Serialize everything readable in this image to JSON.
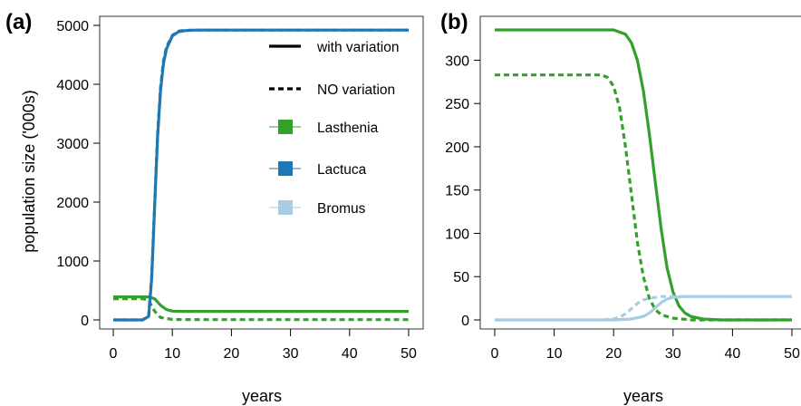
{
  "colors": {
    "Lasthenia": "#33a02c",
    "Lactuca": "#1f78b4",
    "Bromus": "#a6cee3"
  },
  "chart_data": [
    {
      "panel": "(a)",
      "type": "line",
      "title": "",
      "xlabel": "years",
      "ylabel": "population size ('000s)",
      "xlim": [
        0,
        50
      ],
      "ylim": [
        0,
        5000
      ],
      "x_ticks": [
        0,
        10,
        20,
        30,
        40,
        50
      ],
      "y_ticks": [
        0,
        1000,
        2000,
        3000,
        4000,
        5000
      ],
      "legend": {
        "placement": "right",
        "line_styles": [
          {
            "label": "with variation",
            "style": "solid"
          },
          {
            "label": "NO variation",
            "style": "dashed"
          }
        ],
        "species": [
          {
            "label": "Lasthenia",
            "color": "#33a02c"
          },
          {
            "label": "Lactuca",
            "color": "#1f78b4"
          },
          {
            "label": "Bromus",
            "color": "#a6cee3"
          }
        ]
      },
      "series": [
        {
          "name": "Lasthenia",
          "variation": "with",
          "style": "solid",
          "color": "#33a02c",
          "x": [
            0,
            5,
            6,
            7,
            8,
            9,
            10,
            12,
            15,
            20,
            30,
            40,
            50
          ],
          "y": [
            390,
            390,
            390,
            360,
            250,
            175,
            150,
            145,
            145,
            145,
            145,
            145,
            145
          ]
        },
        {
          "name": "Lasthenia",
          "variation": "none",
          "style": "dashed",
          "color": "#33a02c",
          "x": [
            0,
            5,
            6,
            7,
            8,
            10,
            15,
            20,
            30,
            40,
            50
          ],
          "y": [
            360,
            360,
            330,
            150,
            40,
            8,
            5,
            5,
            5,
            5,
            5
          ]
        },
        {
          "name": "Lactuca",
          "variation": "with",
          "style": "solid",
          "color": "#1f78b4",
          "x": [
            0,
            5,
            6,
            6.5,
            7,
            7.5,
            8,
            8.5,
            9,
            10,
            11,
            12,
            14,
            20,
            30,
            40,
            50
          ],
          "y": [
            0,
            0,
            60,
            700,
            1900,
            3100,
            3900,
            4350,
            4600,
            4820,
            4890,
            4910,
            4920,
            4920,
            4920,
            4920,
            4920
          ]
        },
        {
          "name": "Lactuca",
          "variation": "none",
          "style": "dashed",
          "color": "#1f78b4",
          "x": [
            0,
            5,
            6,
            6.5,
            7,
            7.5,
            8,
            8.5,
            9,
            10,
            11,
            12,
            14,
            20,
            30,
            40,
            50
          ],
          "y": [
            0,
            0,
            80,
            750,
            1950,
            3150,
            3950,
            4400,
            4630,
            4830,
            4900,
            4915,
            4920,
            4920,
            4920,
            4920,
            4920
          ]
        }
      ]
    },
    {
      "panel": "(b)",
      "type": "line",
      "title": "",
      "xlabel": "years",
      "ylabel": "",
      "xlim": [
        0,
        50
      ],
      "ylim": [
        0,
        335
      ],
      "x_ticks": [
        0,
        10,
        20,
        30,
        40,
        50
      ],
      "y_ticks": [
        0,
        50,
        100,
        150,
        200,
        250,
        300
      ],
      "series": [
        {
          "name": "Lasthenia",
          "variation": "with",
          "style": "solid",
          "color": "#33a02c",
          "x": [
            0,
            10,
            20,
            22,
            23,
            24,
            25,
            26,
            27,
            28,
            29,
            30,
            31,
            32,
            33,
            35,
            38,
            40,
            50
          ],
          "y": [
            335,
            335,
            335,
            330,
            320,
            300,
            265,
            215,
            160,
            105,
            60,
            32,
            16,
            8,
            4,
            1,
            0,
            0,
            0
          ]
        },
        {
          "name": "Lasthenia",
          "variation": "none",
          "style": "dashed",
          "color": "#33a02c",
          "x": [
            0,
            10,
            18,
            19,
            20,
            21,
            22,
            23,
            24,
            25,
            26,
            27,
            28,
            30,
            33,
            50
          ],
          "y": [
            283,
            283,
            283,
            280,
            270,
            245,
            200,
            145,
            90,
            50,
            25,
            12,
            6,
            2,
            0,
            0
          ]
        },
        {
          "name": "Bromus",
          "variation": "with",
          "style": "solid",
          "color": "#a6cee3",
          "x": [
            0,
            20,
            23,
            25,
            26,
            27,
            28,
            29,
            30,
            32,
            35,
            40,
            50
          ],
          "y": [
            0,
            0,
            1,
            4,
            8,
            14,
            20,
            24,
            26,
            27,
            27,
            27,
            27
          ]
        },
        {
          "name": "Bromus",
          "variation": "none",
          "style": "dashed",
          "color": "#a6cee3",
          "x": [
            0,
            18,
            20,
            21,
            22,
            23,
            24,
            25,
            26,
            27,
            28,
            30,
            50
          ],
          "y": [
            0,
            0,
            1,
            3,
            7,
            13,
            19,
            23,
            25,
            26,
            27,
            27,
            27
          ]
        }
      ]
    }
  ]
}
